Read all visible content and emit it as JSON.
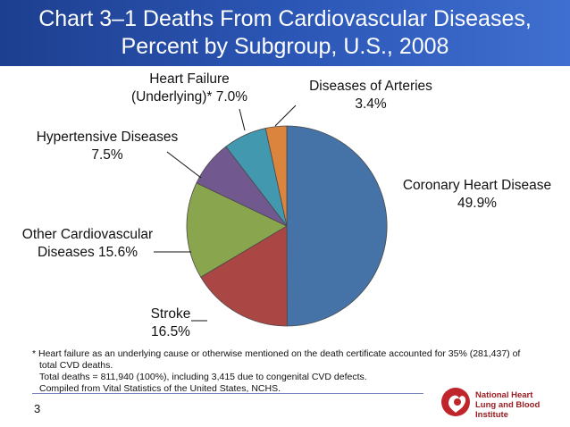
{
  "title": {
    "line1": "Chart 3–1 Deaths From Cardiovascular Diseases,",
    "line2": "Percent by Subgroup, U.S., 2008"
  },
  "chart_data": {
    "type": "pie",
    "title": "Chart 3–1 Deaths From Cardiovascular Diseases, Percent by Subgroup, U.S., 2008",
    "start_angle_deg": 0,
    "direction": "clockwise",
    "slices": [
      {
        "name": "Coronary Heart Disease",
        "value": 49.9,
        "label_lines": [
          "Coronary Heart Disease",
          "49.9%"
        ],
        "color": "#4572a7"
      },
      {
        "name": "Stroke",
        "value": 16.5,
        "label_lines": [
          "Stroke",
          "16.5%"
        ],
        "color": "#aa4643"
      },
      {
        "name": "Other Cardiovascular Diseases",
        "value": 15.6,
        "label_lines": [
          "Other Cardiovascular",
          "Diseases 15.6%"
        ],
        "color": "#89a54e"
      },
      {
        "name": "Hypertensive Diseases",
        "value": 7.5,
        "label_lines": [
          "Hypertensive Diseases",
          "7.5%"
        ],
        "color": "#71588f"
      },
      {
        "name": "Heart Failure (Underlying)*",
        "value": 7.0,
        "label_lines": [
          "Heart Failure",
          "(Underlying)* 7.0%"
        ],
        "color": "#4198af"
      },
      {
        "name": "Diseases of Arteries",
        "value": 3.4,
        "label_lines": [
          "Diseases of Arteries",
          "3.4%"
        ],
        "color": "#db843d"
      }
    ]
  },
  "footnote": {
    "line1": "* Heart failure as an underlying cause or otherwise mentioned on the death certificate accounted for 35% (281,437) of",
    "line2": "total CVD deaths.",
    "line3": "Total deaths = 811,940 (100%), including 3,415 due to congenital CVD defects.",
    "line4": "Compiled from Vital Statistics of the United States, NCHS."
  },
  "page_number": "3",
  "logo": {
    "line1": "National Heart",
    "line2": "Lung and Blood Institute",
    "color": "#9b1c22"
  }
}
